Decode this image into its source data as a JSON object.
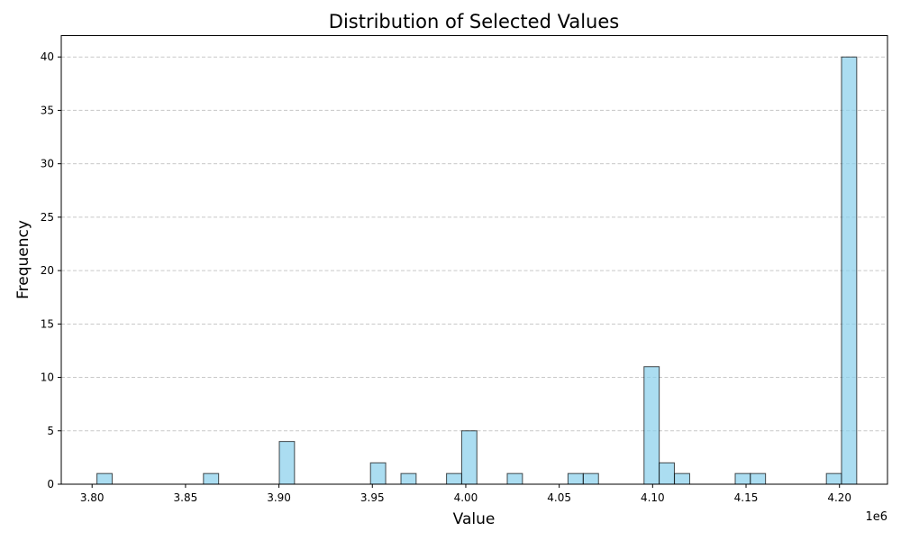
{
  "chart_data": {
    "type": "bar",
    "subtype": "histogram",
    "title": "Distribution of Selected Values",
    "xlabel": "Value",
    "ylabel": "Frequency",
    "x_offset_label": "1e6",
    "x_scale": 1000000,
    "xlim": [
      3.7835,
      4.2257
    ],
    "ylim": [
      0,
      42
    ],
    "xticks": [
      3.8,
      3.85,
      3.9,
      3.95,
      4.0,
      4.05,
      4.1,
      4.15,
      4.2
    ],
    "xtick_labels": [
      "3.80",
      "3.85",
      "3.90",
      "3.95",
      "4.00",
      "4.05",
      "4.10",
      "4.15",
      "4.20"
    ],
    "yticks": [
      0,
      5,
      10,
      15,
      20,
      25,
      30,
      35,
      40
    ],
    "ytick_labels": [
      "0",
      "5",
      "10",
      "15",
      "20",
      "25",
      "30",
      "35",
      "40"
    ],
    "bin_width": 0.00813,
    "bins": [
      {
        "left": 3.8026,
        "count": 1
      },
      {
        "left": 3.8596,
        "count": 1
      },
      {
        "left": 3.9002,
        "count": 4
      },
      {
        "left": 3.949,
        "count": 2
      },
      {
        "left": 3.9653,
        "count": 1
      },
      {
        "left": 3.9897,
        "count": 1
      },
      {
        "left": 3.9978,
        "count": 5
      },
      {
        "left": 4.0222,
        "count": 1
      },
      {
        "left": 4.0547,
        "count": 1
      },
      {
        "left": 4.0629,
        "count": 1
      },
      {
        "left": 4.0954,
        "count": 11
      },
      {
        "left": 4.1035,
        "count": 2
      },
      {
        "left": 4.1117,
        "count": 1
      },
      {
        "left": 4.1442,
        "count": 1
      },
      {
        "left": 4.1523,
        "count": 1
      },
      {
        "left": 4.193,
        "count": 1
      },
      {
        "left": 4.2011,
        "count": 40
      }
    ],
    "bar_color": "#87CEEB",
    "bar_edge_color": "#000000",
    "grid": {
      "axis": "y",
      "style": "dashed",
      "color": "#c8c8c8"
    }
  }
}
